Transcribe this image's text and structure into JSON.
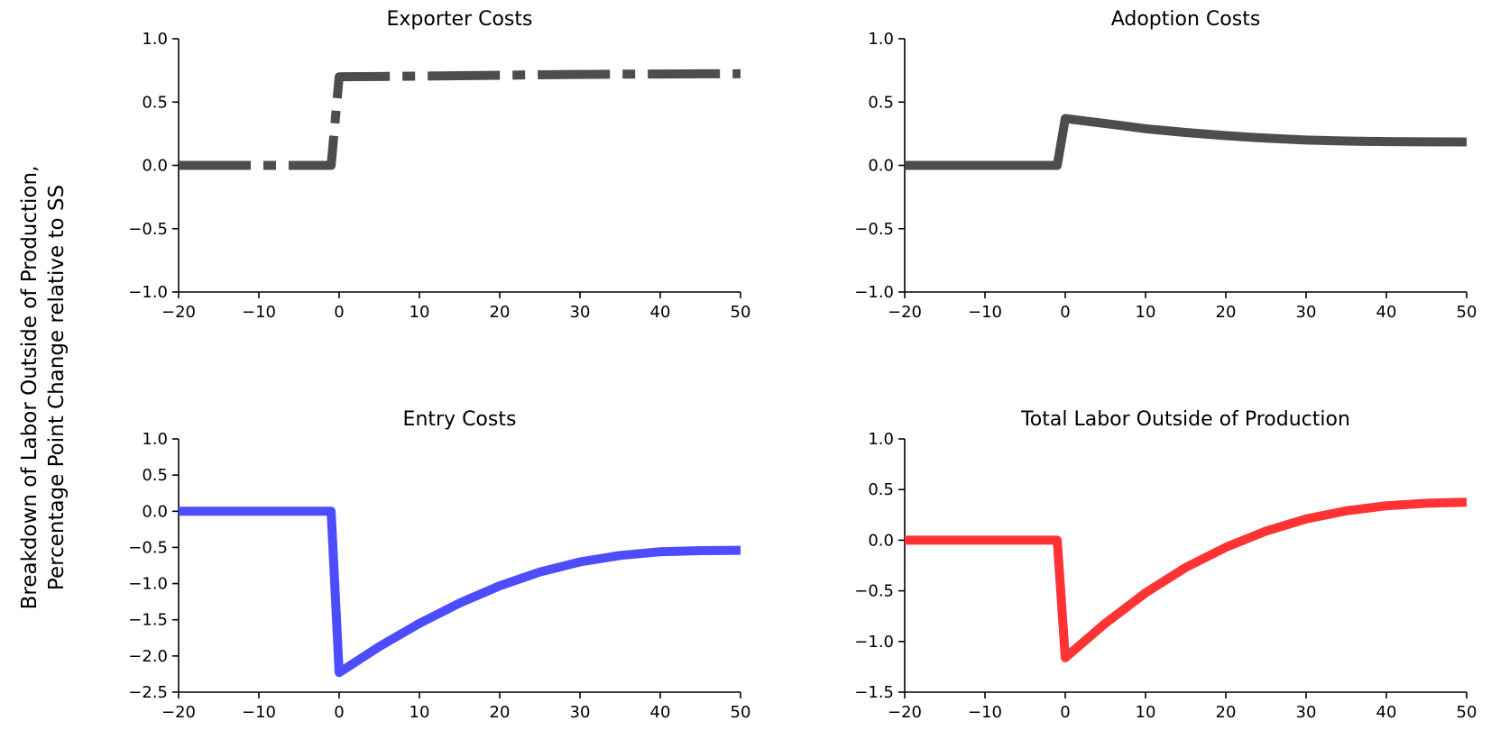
{
  "figure": {
    "ylabel_line1": "Breakdown of Labor Outside of Production,",
    "ylabel_line2": "Percentage Point Change relative to SS"
  },
  "chart_data": [
    {
      "type": "line",
      "title": "Exporter Costs",
      "xlabel": "",
      "ylabel": "",
      "xlim": [
        -20,
        50
      ],
      "ylim": [
        -1.0,
        1.0
      ],
      "xticks": [
        -20,
        -10,
        0,
        10,
        20,
        30,
        40,
        50
      ],
      "yticks": [
        -1.0,
        -0.5,
        0.0,
        0.5,
        1.0
      ],
      "grid": false,
      "series": [
        {
          "color": "#4d4d4d",
          "linestyle": "dashdot",
          "x": [
            -20,
            -1,
            0,
            5,
            10,
            15,
            20,
            25,
            30,
            35,
            40,
            45,
            50
          ],
          "y": [
            0.0,
            0.0,
            0.7,
            0.702,
            0.705,
            0.708,
            0.712,
            0.715,
            0.718,
            0.72,
            0.722,
            0.723,
            0.724
          ]
        }
      ]
    },
    {
      "type": "line",
      "title": "Adoption Costs",
      "xlabel": "",
      "ylabel": "",
      "xlim": [
        -20,
        50
      ],
      "ylim": [
        -1.0,
        1.0
      ],
      "xticks": [
        -20,
        -10,
        0,
        10,
        20,
        30,
        40,
        50
      ],
      "yticks": [
        -1.0,
        -0.5,
        0.0,
        0.5,
        1.0
      ],
      "grid": false,
      "series": [
        {
          "color": "#4d4d4d",
          "linestyle": "solid",
          "x": [
            -20,
            -1,
            0,
            5,
            10,
            15,
            20,
            25,
            30,
            35,
            40,
            45,
            50
          ],
          "y": [
            0.0,
            0.0,
            0.37,
            0.33,
            0.29,
            0.26,
            0.235,
            0.215,
            0.2,
            0.192,
            0.188,
            0.186,
            0.185
          ]
        }
      ]
    },
    {
      "type": "line",
      "title": "Entry Costs",
      "xlabel": "",
      "ylabel": "",
      "xlim": [
        -20,
        50
      ],
      "ylim": [
        -2.5,
        1.0
      ],
      "xticks": [
        -20,
        -10,
        0,
        10,
        20,
        30,
        40,
        50
      ],
      "yticks": [
        -2.5,
        -2.0,
        -1.5,
        -1.0,
        -0.5,
        0.0,
        0.5,
        1.0
      ],
      "grid": false,
      "series": [
        {
          "color": "#4d4dff",
          "linestyle": "solid",
          "x": [
            -20,
            -1,
            0,
            5,
            10,
            15,
            20,
            25,
            30,
            35,
            40,
            45,
            50
          ],
          "y": [
            0.0,
            0.0,
            -2.23,
            -1.87,
            -1.55,
            -1.27,
            -1.03,
            -0.84,
            -0.7,
            -0.61,
            -0.56,
            -0.545,
            -0.54
          ]
        }
      ]
    },
    {
      "type": "line",
      "title": "Total Labor Outside of Production",
      "xlabel": "",
      "ylabel": "",
      "xlim": [
        -20,
        50
      ],
      "ylim": [
        -1.5,
        1.0
      ],
      "xticks": [
        -20,
        -10,
        0,
        10,
        20,
        30,
        40,
        50
      ],
      "yticks": [
        -1.5,
        -1.0,
        -0.5,
        0.0,
        0.5,
        1.0
      ],
      "grid": false,
      "series": [
        {
          "color": "#ff3333",
          "linestyle": "solid",
          "x": [
            -20,
            -1,
            0,
            5,
            10,
            15,
            20,
            25,
            30,
            35,
            40,
            45,
            50
          ],
          "y": [
            0.0,
            0.0,
            -1.16,
            -0.82,
            -0.52,
            -0.27,
            -0.07,
            0.09,
            0.21,
            0.29,
            0.34,
            0.365,
            0.375
          ]
        }
      ]
    }
  ]
}
